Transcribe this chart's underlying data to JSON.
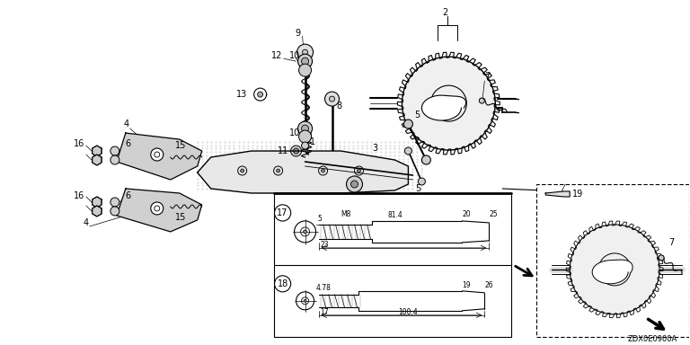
{
  "bg_color": "#ffffff",
  "diagram_code": "ZDX0E0900A",
  "fig_w": 7.68,
  "fig_h": 3.84,
  "dpi": 100
}
